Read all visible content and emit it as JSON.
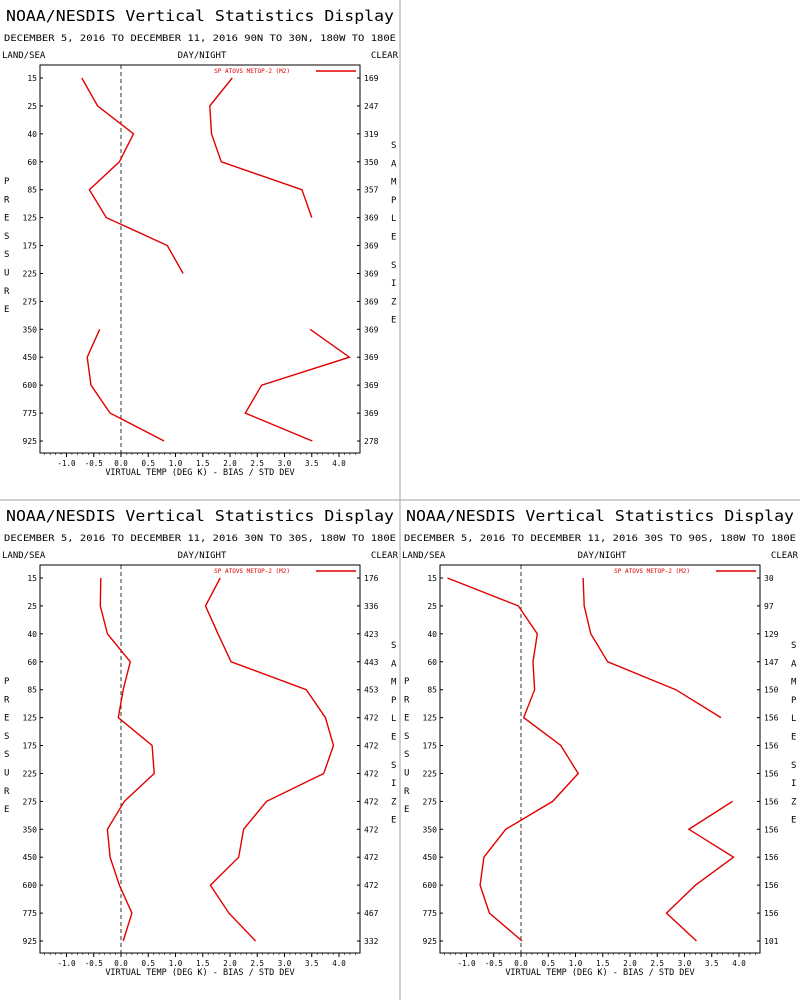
{
  "colors": {
    "line": "#e00000",
    "axis": "#000000",
    "divider": "#a0a0a0",
    "zero_line": "#000000"
  },
  "chart_data": [
    {
      "type": "line",
      "title": "NOAA/NESDIS Vertical Statistics Display",
      "subtitle": "DECEMBER 5, 2016 TO DECEMBER 11, 2016 90N TO 30N, 180W TO 180E",
      "corner_labels": [
        "LAND/SEA",
        "DAY/NIGHT",
        "CLEAR"
      ],
      "legend": "SP ATOVS METOP-2 (M2)",
      "ylabel": "PRESSURE",
      "y2label": "SAMPLE SIZE",
      "xlabel": "VIRTUAL TEMP (DEG K) - BIAS / STD DEV",
      "xlim": [
        -1.5,
        4.5
      ],
      "xticks": [
        "-1.0",
        "-0.5",
        "0.0",
        "0.5",
        "1.0",
        "1.5",
        "2.0",
        "2.5",
        "3.0",
        "3.5",
        "4.0"
      ],
      "pressure_levels": [
        "15",
        "25",
        "40",
        "60",
        "85",
        "125",
        "175",
        "225",
        "275",
        "350",
        "450",
        "600",
        "775",
        "925"
      ],
      "sample_size": [
        "169",
        "247",
        "319",
        "350",
        "357",
        "369",
        "369",
        "369",
        "369",
        "369",
        "369",
        "369",
        "369",
        "278"
      ],
      "series": [
        {
          "values": [
            -0.72,
            -0.43,
            0.23,
            -0.03,
            -0.58,
            -0.27,
            0.85,
            1.14,
            null,
            -0.39,
            -0.62,
            -0.55,
            -0.2,
            0.79
          ]
        },
        {
          "values": [
            2.04,
            1.63,
            1.66,
            1.84,
            3.32,
            3.5,
            null,
            null,
            null,
            3.47,
            4.19,
            2.58,
            2.28,
            3.51
          ]
        }
      ]
    },
    {
      "type": "line",
      "title": "NOAA/NESDIS Vertical Statistics Display",
      "subtitle": "DECEMBER 5, 2016 TO DECEMBER 11, 2016 30N TO 30S, 180W TO 180E",
      "corner_labels": [
        "LAND/SEA",
        "DAY/NIGHT",
        "CLEAR"
      ],
      "legend": "SP ATOVS METOP-2 (M2)",
      "ylabel": "PRESSURE",
      "y2label": "SAMPLE SIZE",
      "xlabel": "VIRTUAL TEMP (DEG K) - BIAS / STD DEV",
      "xlim": [
        -1.5,
        4.5
      ],
      "xticks": [
        "-1.0",
        "-0.5",
        "0.0",
        "0.5",
        "1.0",
        "1.5",
        "2.0",
        "2.5",
        "3.0",
        "3.5",
        "4.0"
      ],
      "pressure_levels": [
        "15",
        "25",
        "40",
        "60",
        "85",
        "125",
        "175",
        "225",
        "275",
        "350",
        "450",
        "600",
        "775",
        "925"
      ],
      "sample_size": [
        "176",
        "336",
        "423",
        "443",
        "453",
        "472",
        "472",
        "472",
        "472",
        "472",
        "472",
        "472",
        "467",
        "332"
      ],
      "series": [
        {
          "values": [
            -0.37,
            -0.38,
            -0.25,
            0.17,
            0.04,
            -0.05,
            0.57,
            0.61,
            0.06,
            -0.25,
            -0.2,
            -0.03,
            0.2,
            0.04
          ]
        },
        {
          "values": [
            1.82,
            1.55,
            1.78,
            2.02,
            3.4,
            3.75,
            3.9,
            3.72,
            2.67,
            2.25,
            2.16,
            1.64,
            1.98,
            2.47
          ]
        }
      ]
    },
    {
      "type": "line",
      "title": "NOAA/NESDIS Vertical Statistics Display",
      "subtitle": "DECEMBER 5, 2016 TO DECEMBER 11, 2016 30S TO 90S, 180W TO 180E",
      "corner_labels": [
        "LAND/SEA",
        "DAY/NIGHT",
        "CLEAR"
      ],
      "legend": "SP ATOVS METOP-2 (M2)",
      "ylabel": "PRESSURE",
      "y2label": "SAMPLE SIZE",
      "xlabel": "VIRTUAL TEMP (DEG K) - BIAS / STD DEV",
      "xlim": [
        -1.5,
        4.5
      ],
      "xticks": [
        "-1.0",
        "-0.5",
        "0.0",
        "0.5",
        "1.0",
        "1.5",
        "2.0",
        "2.5",
        "3.0",
        "3.5",
        "4.0"
      ],
      "pressure_levels": [
        "15",
        "25",
        "40",
        "60",
        "85",
        "125",
        "175",
        "225",
        "275",
        "350",
        "450",
        "600",
        "775",
        "925"
      ],
      "sample_size": [
        "30",
        "97",
        "129",
        "147",
        "150",
        "156",
        "156",
        "156",
        "156",
        "156",
        "156",
        "156",
        "156",
        "101"
      ],
      "series": [
        {
          "values": [
            -1.35,
            -0.05,
            0.3,
            0.22,
            0.25,
            0.05,
            0.73,
            1.05,
            0.58,
            -0.28,
            -0.68,
            -0.75,
            -0.58,
            0.02
          ]
        },
        {
          "values": [
            1.14,
            1.16,
            1.28,
            1.59,
            2.84,
            3.67,
            null,
            null,
            3.88,
            3.08,
            3.9,
            3.2,
            2.67,
            3.22
          ]
        }
      ]
    }
  ]
}
